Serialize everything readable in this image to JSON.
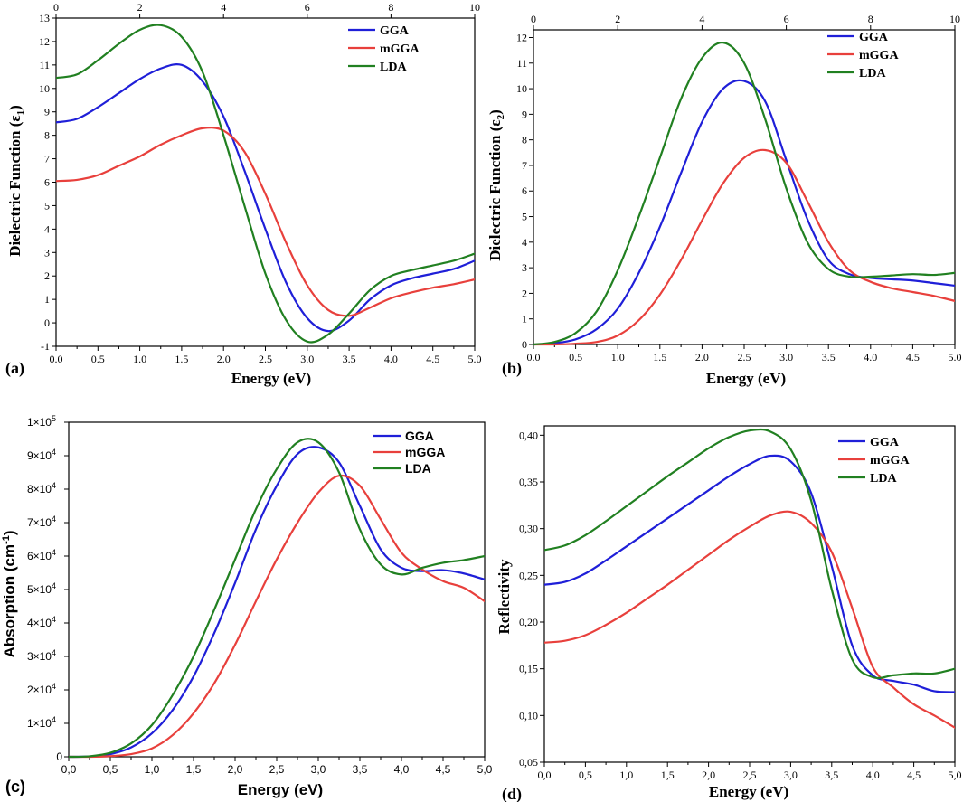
{
  "figure": {
    "panel_labels": [
      "(a)",
      "(b)",
      "(c)",
      "(d)"
    ]
  },
  "colors": {
    "GGA": "#1f1fd8",
    "mGGA": "#e8403c",
    "LDA": "#218021"
  },
  "chart_data": [
    {
      "type": "line",
      "panel": "(a)",
      "xlabel": "Energy (eV)",
      "ylabel": "Dielectric Function (ε",
      "ylabel_sub": "1",
      "ylabel_end": ")",
      "xlim": [
        0,
        5
      ],
      "ylim": [
        -1,
        13
      ],
      "x_ticks": [
        0,
        0.5,
        1,
        1.5,
        2,
        2.5,
        3,
        3.5,
        4,
        4.5,
        5
      ],
      "x_tick_labels": [
        "0.0",
        "0.5",
        "1.0",
        "1.5",
        "2.0",
        "2.5",
        "3.0",
        "3.5",
        "4.0",
        "4.5",
        "5.0"
      ],
      "y_ticks": [
        -1,
        0,
        1,
        2,
        3,
        4,
        5,
        6,
        7,
        8,
        9,
        10,
        11,
        12,
        13
      ],
      "y_tick_labels": [
        "-1",
        "0",
        "1",
        "2",
        "3",
        "4",
        "5",
        "6",
        "7",
        "8",
        "9",
        "10",
        "11",
        "12",
        "13"
      ],
      "top_ticks": [
        0,
        2,
        4,
        6,
        8,
        10
      ],
      "top_tick_labels": [
        "0",
        "2",
        "4",
        "6",
        "8",
        "10"
      ],
      "legend": [
        "GGA",
        "mGGA",
        "LDA"
      ],
      "series": [
        {
          "name": "GGA",
          "x": [
            0,
            0.25,
            0.5,
            0.75,
            1,
            1.25,
            1.5,
            1.75,
            2,
            2.25,
            2.5,
            2.75,
            3,
            3.25,
            3.5,
            3.75,
            4,
            4.25,
            4.5,
            4.75,
            5
          ],
          "values": [
            8.55,
            8.7,
            9.2,
            9.8,
            10.4,
            10.85,
            11.0,
            10.3,
            8.8,
            6.5,
            4.0,
            1.7,
            0.2,
            -0.35,
            0.1,
            1.0,
            1.6,
            1.9,
            2.1,
            2.3,
            2.65
          ]
        },
        {
          "name": "mGGA",
          "x": [
            0,
            0.25,
            0.5,
            0.75,
            1,
            1.25,
            1.5,
            1.75,
            2,
            2.25,
            2.5,
            2.75,
            3,
            3.25,
            3.5,
            3.75,
            4,
            4.25,
            4.5,
            4.75,
            5
          ],
          "values": [
            6.05,
            6.1,
            6.3,
            6.7,
            7.1,
            7.6,
            8.0,
            8.3,
            8.2,
            7.3,
            5.5,
            3.4,
            1.6,
            0.55,
            0.3,
            0.65,
            1.05,
            1.3,
            1.5,
            1.65,
            1.85
          ]
        },
        {
          "name": "LDA",
          "x": [
            0,
            0.25,
            0.5,
            0.75,
            1,
            1.25,
            1.5,
            1.75,
            2,
            2.25,
            2.5,
            2.75,
            3,
            3.25,
            3.5,
            3.75,
            4,
            4.25,
            4.5,
            4.75,
            5
          ],
          "values": [
            10.45,
            10.6,
            11.2,
            11.9,
            12.5,
            12.7,
            12.2,
            10.7,
            8.0,
            5.0,
            2.1,
            0.1,
            -0.8,
            -0.5,
            0.4,
            1.4,
            2.0,
            2.25,
            2.45,
            2.65,
            2.95
          ]
        }
      ]
    },
    {
      "type": "line",
      "panel": "(b)",
      "xlabel": "Energy (eV)",
      "ylabel": "Dielectric Function (ε",
      "ylabel_sub": "2",
      "ylabel_end": ")",
      "xlim": [
        0,
        5
      ],
      "ylim": [
        0,
        12.3
      ],
      "x_ticks": [
        0,
        0.5,
        1,
        1.5,
        2,
        2.5,
        3,
        3.5,
        4,
        4.5,
        5
      ],
      "x_tick_labels": [
        "0.0",
        "0.5",
        "1.0",
        "1.5",
        "2.0",
        "2.5",
        "3.0",
        "3.5",
        "4.0",
        "4.5",
        "5.0"
      ],
      "y_ticks": [
        0,
        1,
        2,
        3,
        4,
        5,
        6,
        7,
        8,
        9,
        10,
        11,
        12
      ],
      "y_tick_labels": [
        "0",
        "1",
        "2",
        "3",
        "4",
        "5",
        "6",
        "7",
        "8",
        "9",
        "10",
        "11",
        "12"
      ],
      "top_ticks": [
        0,
        2,
        4,
        6,
        8,
        10
      ],
      "top_tick_labels": [
        "0",
        "2",
        "4",
        "6",
        "8",
        "10"
      ],
      "legend": [
        "GGA",
        "mGGA",
        "LDA"
      ],
      "series": [
        {
          "name": "GGA",
          "x": [
            0,
            0.25,
            0.5,
            0.75,
            1,
            1.25,
            1.5,
            1.75,
            2,
            2.25,
            2.5,
            2.75,
            3,
            3.25,
            3.5,
            3.75,
            4,
            4.25,
            4.5,
            4.75,
            5
          ],
          "values": [
            0,
            0.05,
            0.2,
            0.6,
            1.4,
            2.8,
            4.6,
            6.7,
            8.7,
            10.0,
            10.3,
            9.5,
            7.2,
            4.9,
            3.3,
            2.75,
            2.6,
            2.55,
            2.5,
            2.4,
            2.3
          ]
        },
        {
          "name": "mGGA",
          "x": [
            0,
            0.25,
            0.5,
            0.75,
            1,
            1.25,
            1.5,
            1.75,
            2,
            2.25,
            2.5,
            2.75,
            3,
            3.25,
            3.5,
            3.75,
            4,
            4.25,
            4.5,
            4.75,
            5
          ],
          "values": [
            0,
            0.0,
            0.03,
            0.1,
            0.35,
            0.95,
            1.95,
            3.3,
            4.85,
            6.3,
            7.3,
            7.6,
            7.1,
            5.6,
            4.0,
            2.9,
            2.45,
            2.2,
            2.05,
            1.9,
            1.7
          ]
        },
        {
          "name": "LDA",
          "x": [
            0,
            0.25,
            0.5,
            0.75,
            1,
            1.25,
            1.5,
            1.75,
            2,
            2.25,
            2.5,
            2.75,
            3,
            3.25,
            3.5,
            3.75,
            4,
            4.25,
            4.5,
            4.75,
            5
          ],
          "values": [
            0,
            0.1,
            0.45,
            1.3,
            2.9,
            5.0,
            7.3,
            9.6,
            11.2,
            11.8,
            11.0,
            8.8,
            6.1,
            4.0,
            2.95,
            2.65,
            2.65,
            2.7,
            2.75,
            2.72,
            2.8
          ]
        }
      ]
    },
    {
      "type": "line",
      "panel": "(c)",
      "xlabel": "Energy (eV)",
      "ylabel": "Absorption (cm",
      "ylabel_sup": "-1",
      "ylabel_end": ")",
      "xlim": [
        0,
        5
      ],
      "ylim": [
        0,
        100000
      ],
      "x_ticks": [
        0,
        0.5,
        1,
        1.5,
        2,
        2.5,
        3,
        3.5,
        4,
        4.5,
        5
      ],
      "x_tick_labels": [
        "0,0",
        "0,5",
        "1,0",
        "1,5",
        "2,0",
        "2,5",
        "3,0",
        "3,5",
        "4,0",
        "4,5",
        "5,0"
      ],
      "y_ticks": [
        0,
        10000,
        20000,
        30000,
        40000,
        50000,
        60000,
        70000,
        80000,
        90000,
        100000
      ],
      "y_tick_labels": [
        "0",
        "1×10⁴",
        "2×10⁴",
        "3×10⁴",
        "4×10⁴",
        "5×10⁴",
        "6×10⁴",
        "7×10⁴",
        "8×10⁴",
        "9×10⁴",
        "1×10⁵"
      ],
      "legend": [
        "GGA",
        "mGGA",
        "LDA"
      ],
      "series": [
        {
          "name": "GGA",
          "x": [
            0,
            0.25,
            0.5,
            0.75,
            1,
            1.25,
            1.5,
            1.75,
            2,
            2.25,
            2.5,
            2.75,
            3,
            3.25,
            3.5,
            3.75,
            4,
            4.25,
            4.5,
            4.75,
            5
          ],
          "values": [
            0,
            100,
            800,
            2800,
            7000,
            14000,
            24000,
            37000,
            52000,
            68000,
            81000,
            90500,
            92500,
            88000,
            75000,
            62000,
            56500,
            55500,
            55800,
            54800,
            53000
          ]
        },
        {
          "name": "mGGA",
          "x": [
            0,
            0.25,
            0.5,
            0.75,
            1,
            1.25,
            1.5,
            1.75,
            2,
            2.25,
            2.5,
            2.75,
            3,
            3.25,
            3.5,
            3.75,
            4,
            4.25,
            4.5,
            4.75,
            5
          ],
          "values": [
            0,
            0,
            200,
            800,
            2500,
            6500,
            13000,
            22000,
            33500,
            46500,
            59000,
            70000,
            79000,
            84000,
            81000,
            71000,
            61000,
            56000,
            52500,
            50500,
            46500
          ]
        },
        {
          "name": "LDA",
          "x": [
            0,
            0.25,
            0.5,
            0.75,
            1,
            1.25,
            1.5,
            1.75,
            2,
            2.25,
            2.5,
            2.75,
            3,
            3.25,
            3.5,
            3.75,
            4,
            4.25,
            4.5,
            4.75,
            5
          ],
          "values": [
            0,
            150,
            1200,
            4000,
            9500,
            18500,
            30000,
            44000,
            59000,
            74000,
            86000,
            94000,
            94000,
            85000,
            68000,
            57500,
            54500,
            56500,
            58000,
            58800,
            60000
          ]
        }
      ]
    },
    {
      "type": "line",
      "panel": "(d)",
      "xlabel": "Energy (eV)",
      "ylabel": "Reflectivity",
      "xlim": [
        0,
        5
      ],
      "ylim": [
        0.05,
        0.41
      ],
      "x_ticks": [
        0,
        0.5,
        1,
        1.5,
        2,
        2.5,
        3,
        3.5,
        4,
        4.5,
        5
      ],
      "x_tick_labels": [
        "0,0",
        "0,5",
        "1,0",
        "1,5",
        "2,0",
        "2,5",
        "3,0",
        "3,5",
        "4,0",
        "4,5",
        "5,0"
      ],
      "y_ticks": [
        0.05,
        0.1,
        0.15,
        0.2,
        0.25,
        0.3,
        0.35,
        0.4
      ],
      "y_tick_labels": [
        "0,05",
        "0,10",
        "0,15",
        "0,20",
        "0,25",
        "0,30",
        "0,35",
        "0,40"
      ],
      "legend": [
        "GGA",
        "mGGA",
        "LDA"
      ],
      "series": [
        {
          "name": "GGA",
          "x": [
            0,
            0.25,
            0.5,
            0.75,
            1,
            1.25,
            1.5,
            1.75,
            2,
            2.25,
            2.5,
            2.75,
            3,
            3.25,
            3.5,
            3.75,
            4,
            4.25,
            4.5,
            4.75,
            5
          ],
          "values": [
            0.24,
            0.243,
            0.252,
            0.266,
            0.281,
            0.296,
            0.311,
            0.326,
            0.341,
            0.356,
            0.369,
            0.378,
            0.372,
            0.338,
            0.26,
            0.175,
            0.143,
            0.137,
            0.133,
            0.126,
            0.125
          ]
        },
        {
          "name": "mGGA",
          "x": [
            0,
            0.25,
            0.5,
            0.75,
            1,
            1.25,
            1.5,
            1.75,
            2,
            2.25,
            2.5,
            2.75,
            3,
            3.25,
            3.5,
            3.75,
            4,
            4.25,
            4.5,
            4.75,
            5
          ],
          "values": [
            0.178,
            0.18,
            0.186,
            0.197,
            0.21,
            0.225,
            0.24,
            0.256,
            0.272,
            0.288,
            0.302,
            0.314,
            0.318,
            0.306,
            0.275,
            0.215,
            0.152,
            0.13,
            0.112,
            0.1,
            0.087
          ]
        },
        {
          "name": "LDA",
          "x": [
            0,
            0.25,
            0.5,
            0.75,
            1,
            1.25,
            1.5,
            1.75,
            2,
            2.25,
            2.5,
            2.75,
            3,
            3.25,
            3.5,
            3.75,
            4,
            4.25,
            4.5,
            4.75,
            5
          ],
          "values": [
            0.277,
            0.282,
            0.293,
            0.308,
            0.324,
            0.34,
            0.356,
            0.371,
            0.386,
            0.398,
            0.405,
            0.404,
            0.385,
            0.33,
            0.235,
            0.16,
            0.141,
            0.143,
            0.145,
            0.145,
            0.15
          ]
        }
      ]
    }
  ]
}
